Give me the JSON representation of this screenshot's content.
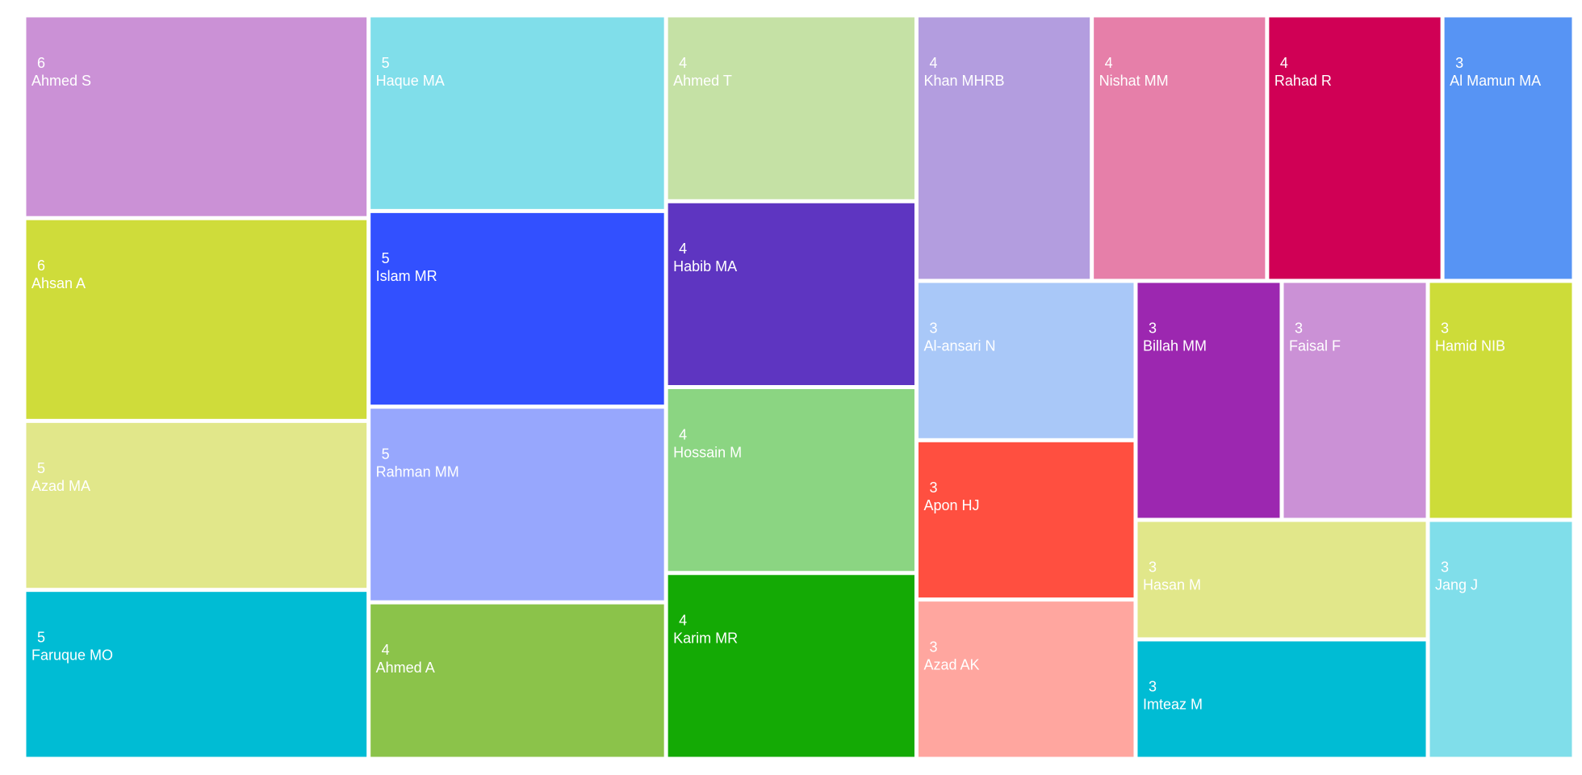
{
  "chart_data": {
    "type": "treemap",
    "categories": [
      "Ahmed S",
      "Ahsan A",
      "Azad MA",
      "Faruque MO",
      "Haque MA",
      "Islam MR",
      "Rahman MM",
      "Ahmed A",
      "Ahmed T",
      "Habib MA",
      "Hossain M",
      "Karim MR",
      "Khan MHRB",
      "Nishat MM",
      "Rahad R",
      "Al Mamun MA",
      "Al-ansari N",
      "Apon HJ",
      "Azad AK",
      "Billah MM",
      "Faisal F",
      "Hamid NIB",
      "Hasan M",
      "Imteaz M",
      "Jang J"
    ],
    "values": [
      6,
      6,
      5,
      5,
      5,
      5,
      5,
      4,
      4,
      4,
      4,
      4,
      4,
      4,
      4,
      3,
      3,
      3,
      3,
      3,
      3,
      3,
      3,
      3,
      3
    ],
    "colors": [
      "#cb91d6",
      "#cfdc3a",
      "#e1e78a",
      "#00bcd4",
      "#80deea",
      "#3250ff",
      "#97a7fd",
      "#8bc34a",
      "#c5e1a5",
      "#5e35c1",
      "#8bd582",
      "#14aa05",
      "#b39ddf",
      "#e67fa9",
      "#d00055",
      "#5794f4",
      "#a9c8f8",
      "#ff4f40",
      "#ffa69f",
      "#9c27b0",
      "#cb91d6",
      "#cddc39",
      "#e1e78a",
      "#00bcd4",
      "#80deea"
    ]
  }
}
